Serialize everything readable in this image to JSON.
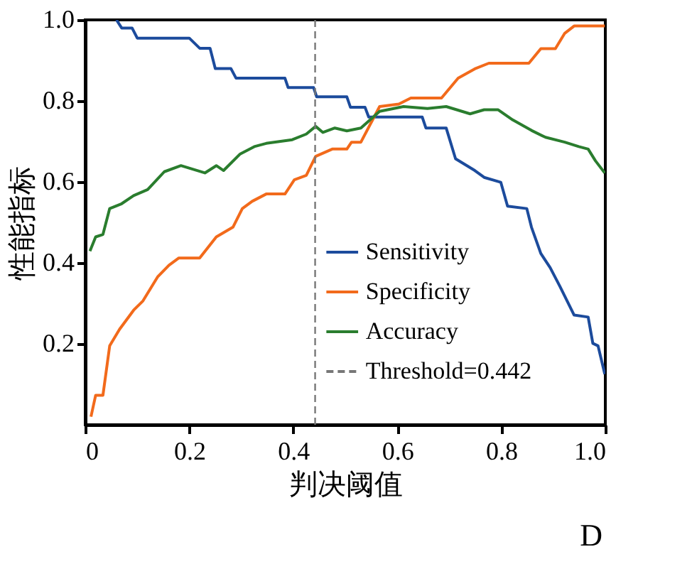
{
  "chart_data": {
    "type": "line",
    "xlabel": "判决阈值",
    "ylabel": "性能指标",
    "xlim": [
      0,
      1
    ],
    "ylim": [
      0,
      1
    ],
    "xticks": [
      0,
      0.2,
      0.4,
      0.6,
      0.8,
      {
        "value": 1,
        "label": "1.0"
      }
    ],
    "yticks": [
      0.2,
      0.4,
      0.6,
      0.8,
      {
        "value": 1,
        "label": "1.0"
      }
    ],
    "grid": false,
    "legend": "bottom right",
    "series": [
      {
        "name": "Sensitivity",
        "color": "#1c4b9c",
        "x": [
          0.06,
          0.07,
          0.09,
          0.1,
          0.2,
          0.22,
          0.24,
          0.25,
          0.28,
          0.29,
          0.384,
          0.39,
          0.439,
          0.445,
          0.503,
          0.51,
          0.538,
          0.545,
          0.648,
          0.655,
          0.694,
          0.712,
          0.749,
          0.767,
          0.799,
          0.812,
          0.849,
          0.858,
          0.876,
          0.894,
          0.913,
          0.94,
          0.967,
          0.976,
          0.986,
          0.999
        ],
        "values": [
          1.0,
          0.98,
          0.98,
          0.955,
          0.955,
          0.93,
          0.93,
          0.88,
          0.88,
          0.856,
          0.856,
          0.833,
          0.833,
          0.81,
          0.81,
          0.784,
          0.784,
          0.76,
          0.76,
          0.733,
          0.733,
          0.657,
          0.628,
          0.611,
          0.599,
          0.54,
          0.534,
          0.488,
          0.423,
          0.388,
          0.341,
          0.271,
          0.266,
          0.201,
          0.195,
          0.125
        ]
      },
      {
        "name": "Specificity",
        "color": "#f26a1b",
        "x": [
          0.011,
          0.02,
          0.034,
          0.047,
          0.066,
          0.093,
          0.111,
          0.139,
          0.161,
          0.18,
          0.22,
          0.252,
          0.284,
          0.302,
          0.321,
          0.348,
          0.384,
          0.402,
          0.425,
          0.443,
          0.475,
          0.503,
          0.512,
          0.53,
          0.566,
          0.603,
          0.626,
          0.685,
          0.717,
          0.749,
          0.776,
          0.853,
          0.876,
          0.904,
          0.922,
          0.94,
          0.999
        ],
        "values": [
          0.02,
          0.073,
          0.073,
          0.195,
          0.236,
          0.283,
          0.306,
          0.365,
          0.394,
          0.412,
          0.412,
          0.464,
          0.488,
          0.534,
          0.552,
          0.57,
          0.57,
          0.605,
          0.616,
          0.663,
          0.681,
          0.681,
          0.698,
          0.698,
          0.786,
          0.792,
          0.807,
          0.807,
          0.856,
          0.879,
          0.893,
          0.893,
          0.929,
          0.929,
          0.967,
          0.985,
          0.985
        ]
      },
      {
        "name": "Accuracy",
        "color": "#2a7d2e",
        "x": [
          0.009,
          0.02,
          0.034,
          0.047,
          0.07,
          0.093,
          0.12,
          0.152,
          0.184,
          0.23,
          0.252,
          0.266,
          0.298,
          0.325,
          0.348,
          0.398,
          0.425,
          0.443,
          0.457,
          0.48,
          0.503,
          0.53,
          0.566,
          0.612,
          0.658,
          0.694,
          0.74,
          0.767,
          0.794,
          0.822,
          0.858,
          0.885,
          0.922,
          0.949,
          0.967,
          0.981,
          0.999
        ],
        "values": [
          0.429,
          0.464,
          0.47,
          0.534,
          0.546,
          0.566,
          0.581,
          0.625,
          0.64,
          0.622,
          0.64,
          0.628,
          0.669,
          0.687,
          0.695,
          0.704,
          0.718,
          0.737,
          0.722,
          0.733,
          0.726,
          0.733,
          0.774,
          0.786,
          0.781,
          0.786,
          0.768,
          0.778,
          0.778,
          0.753,
          0.727,
          0.71,
          0.698,
          0.687,
          0.681,
          0.652,
          0.622
        ]
      }
    ],
    "ref_lines": [
      {
        "axis": "x",
        "value": 0.442,
        "label": "Threshold=0.442",
        "color": "#777777",
        "line_style": "dashed"
      }
    ],
    "annotations": [
      "D"
    ]
  }
}
